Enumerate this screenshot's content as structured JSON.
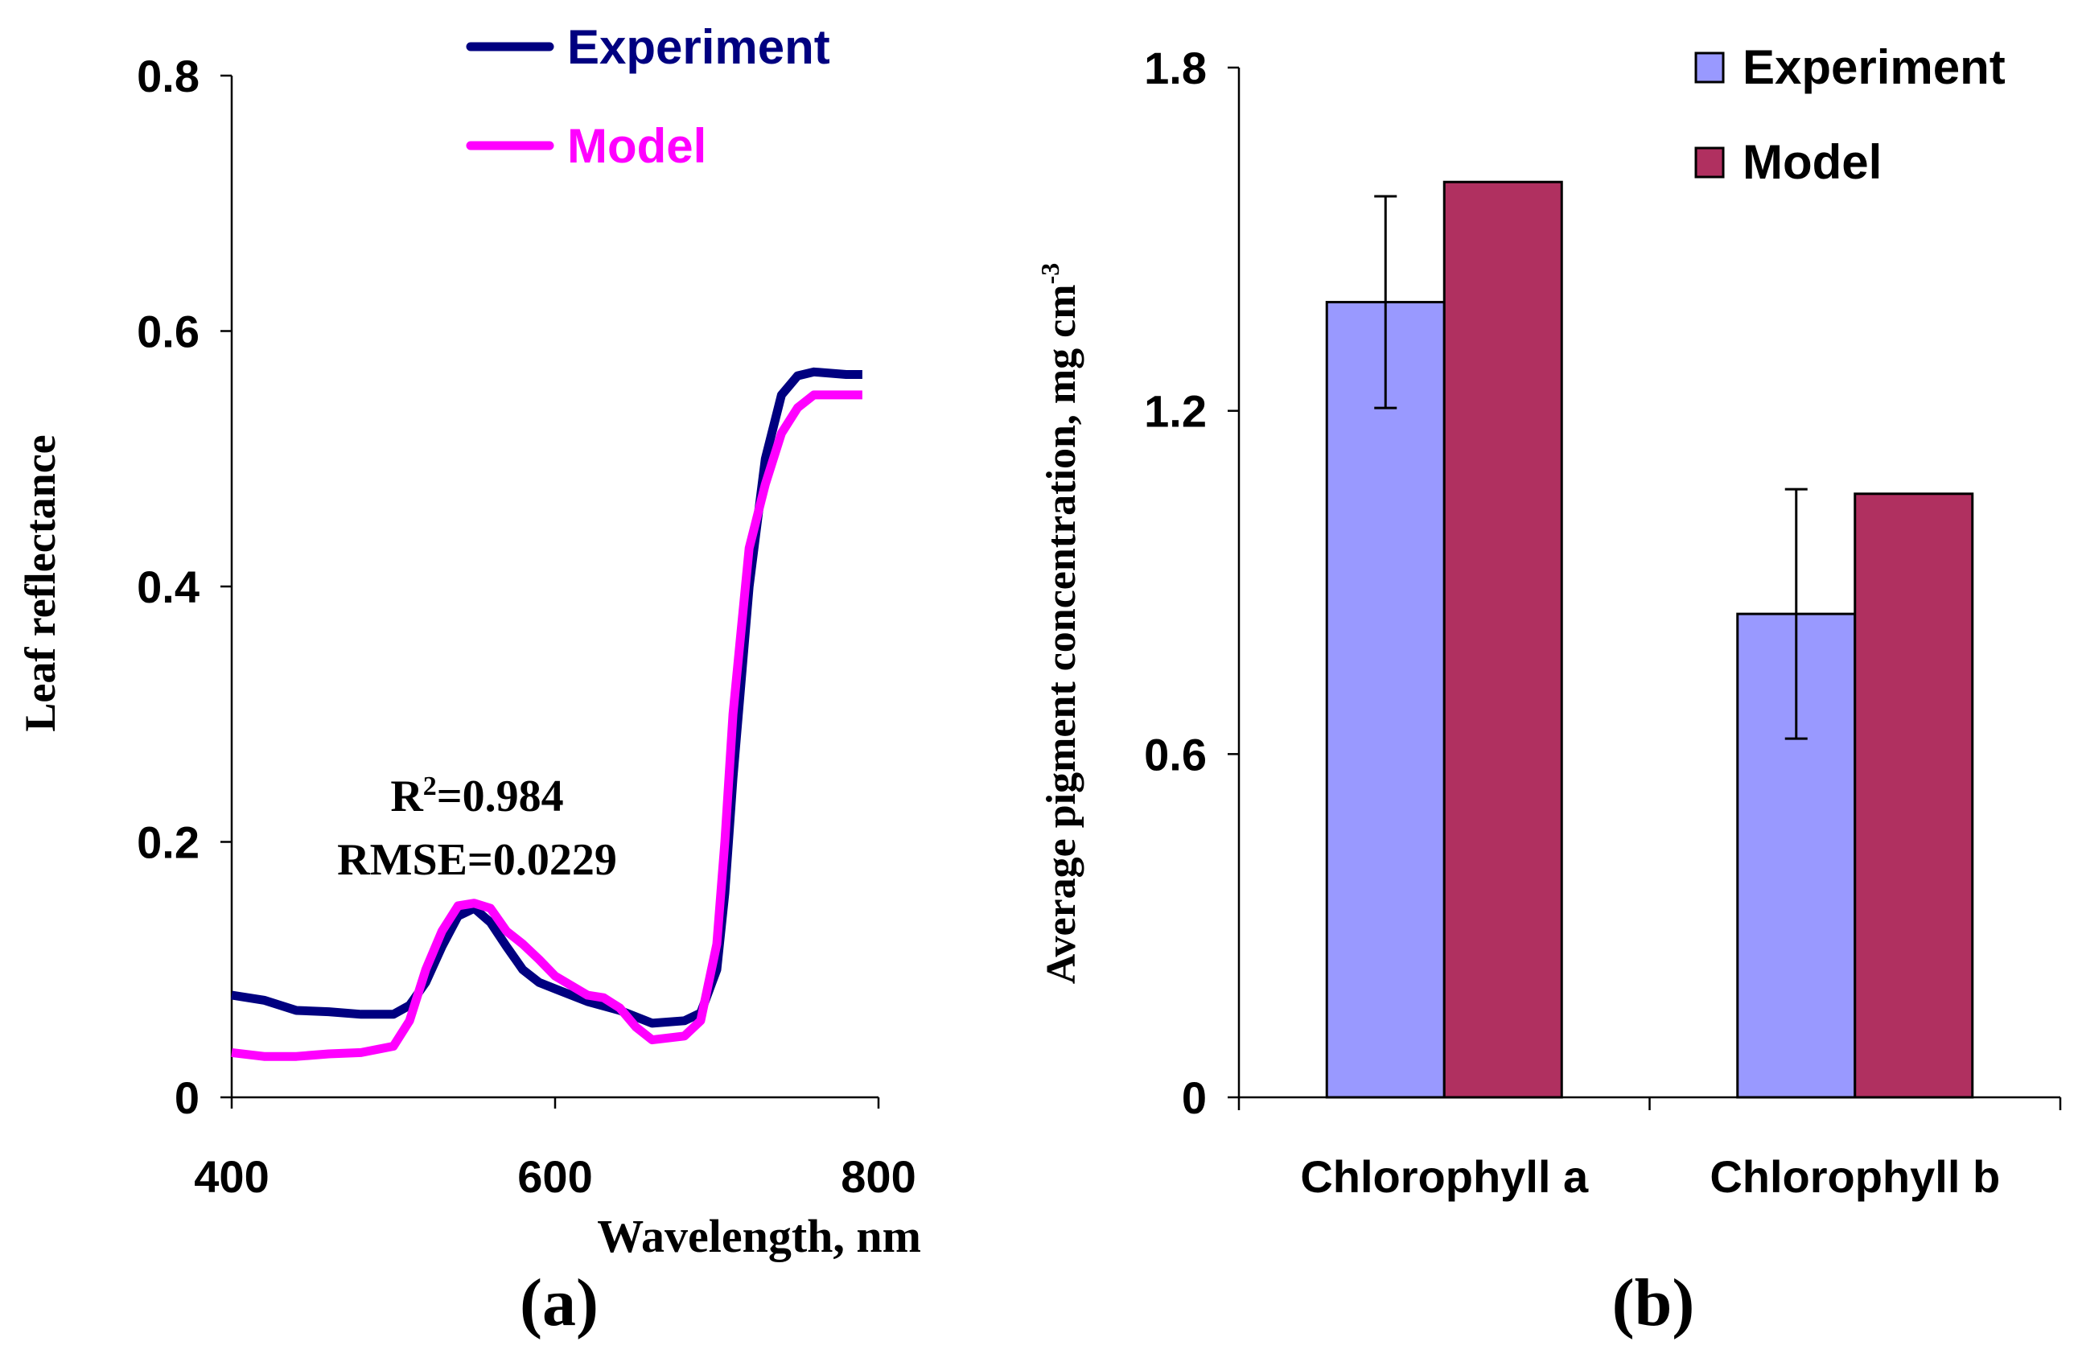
{
  "chart_data": [
    {
      "type": "line",
      "panel_label": "(a)",
      "xlabel": "Wavelength, nm",
      "ylabel": "Leaf reflectance",
      "xlim": [
        400,
        800
      ],
      "ylim": [
        0,
        0.8
      ],
      "xticks": [
        400,
        600,
        800
      ],
      "yticks": [
        0,
        0.2,
        0.4,
        0.6,
        0.8
      ],
      "ytick_labels": [
        "0",
        "0.2",
        "0.4",
        "0.6",
        "0.8"
      ],
      "grid": false,
      "legend_position": "top-center",
      "annotation": {
        "r2_label": "R",
        "r2_sup": "2",
        "r2_value": "=0.984",
        "rmse": "RMSE=0.0229",
        "color": "#ff00ff"
      },
      "series": [
        {
          "name": "Experiment",
          "color": "#000080",
          "x": [
            400,
            420,
            440,
            460,
            480,
            500,
            510,
            520,
            530,
            540,
            550,
            560,
            570,
            580,
            590,
            600,
            620,
            640,
            660,
            680,
            690,
            700,
            705,
            710,
            720,
            730,
            740,
            750,
            760,
            780,
            790
          ],
          "y": [
            0.08,
            0.076,
            0.068,
            0.067,
            0.065,
            0.065,
            0.072,
            0.09,
            0.118,
            0.142,
            0.148,
            0.137,
            0.118,
            0.1,
            0.09,
            0.085,
            0.075,
            0.068,
            0.058,
            0.06,
            0.066,
            0.1,
            0.16,
            0.25,
            0.4,
            0.5,
            0.55,
            0.565,
            0.568,
            0.566,
            0.566
          ]
        },
        {
          "name": "Model",
          "color": "#ff00ff",
          "x": [
            400,
            420,
            440,
            460,
            480,
            500,
            510,
            520,
            530,
            540,
            550,
            560,
            570,
            580,
            590,
            600,
            620,
            630,
            640,
            650,
            660,
            680,
            690,
            700,
            705,
            710,
            720,
            730,
            740,
            750,
            760,
            780,
            790
          ],
          "y": [
            0.035,
            0.032,
            0.032,
            0.034,
            0.035,
            0.04,
            0.06,
            0.1,
            0.13,
            0.15,
            0.152,
            0.148,
            0.13,
            0.12,
            0.108,
            0.095,
            0.08,
            0.078,
            0.07,
            0.055,
            0.045,
            0.048,
            0.06,
            0.12,
            0.2,
            0.3,
            0.43,
            0.48,
            0.52,
            0.54,
            0.55,
            0.55,
            0.55
          ]
        }
      ]
    },
    {
      "type": "bar",
      "panel_label": "(b)",
      "xlabel": "",
      "ylabel": "Average pigment concentration, mg cm",
      "ylabel_sup": "-3",
      "ylim": [
        0,
        1.8
      ],
      "yticks": [
        0,
        0.6,
        1.2,
        1.8
      ],
      "ytick_labels": [
        "0",
        "0.6",
        "1.2",
        "1.8"
      ],
      "categories": [
        "Chlorophyll a",
        "Chlorophyll b"
      ],
      "legend_position": "top-right",
      "series": [
        {
          "name": "Experiment",
          "color": "#9999ff",
          "values": [
            1.39,
            0.845
          ],
          "errors": [
            0.185,
            0.218
          ]
        },
        {
          "name": "Model",
          "color": "#b03060",
          "values": [
            1.6,
            1.055
          ]
        }
      ]
    }
  ]
}
